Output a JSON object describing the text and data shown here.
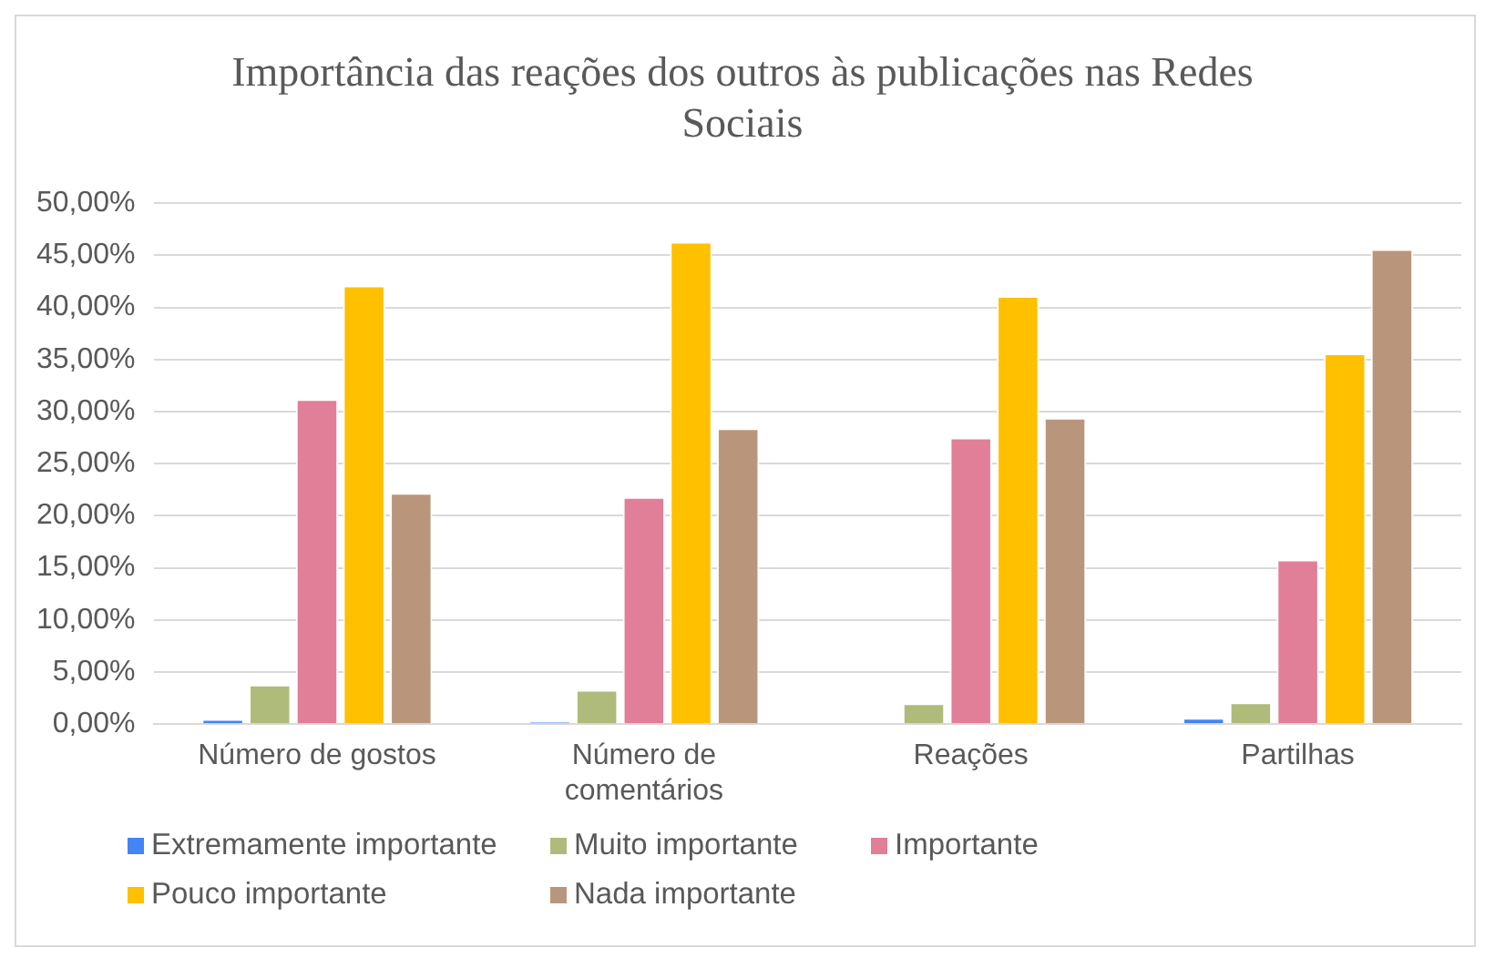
{
  "chart_data": {
    "type": "bar",
    "title": "Importância das reações dos outros às publicações nas Redes Sociais",
    "categories": [
      "Número de gostos",
      "Número de comentários",
      "Reações",
      "Partilhas"
    ],
    "series": [
      {
        "name": "Extremamente importante",
        "color": "#4285f4",
        "values": [
          0.5,
          0.2,
          0,
          0.6
        ]
      },
      {
        "name": "Muito importante",
        "color": "#afbb7a",
        "values": [
          3.8,
          3.3,
          2.0,
          2.1
        ]
      },
      {
        "name": "Importante",
        "color": "#e07f97",
        "values": [
          31.2,
          21.8,
          27.5,
          15.8
        ]
      },
      {
        "name": "Pouco importante",
        "color": "#ffc000",
        "values": [
          42.1,
          46.3,
          41.1,
          35.6
        ]
      },
      {
        "name": "Nada importante",
        "color": "#b9967b",
        "values": [
          22.2,
          28.4,
          29.4,
          45.6
        ]
      }
    ],
    "ylim": [
      0,
      50
    ],
    "yticks": [
      {
        "value": 0,
        "label": "0,00%"
      },
      {
        "value": 5,
        "label": "5,00%"
      },
      {
        "value": 10,
        "label": "10,00%"
      },
      {
        "value": 15,
        "label": "15,00%"
      },
      {
        "value": 20,
        "label": "20,00%"
      },
      {
        "value": 25,
        "label": "25,00%"
      },
      {
        "value": 30,
        "label": "30,00%"
      },
      {
        "value": 35,
        "label": "35,00%"
      },
      {
        "value": 40,
        "label": "40,00%"
      },
      {
        "value": 45,
        "label": "45,00%"
      },
      {
        "value": 50,
        "label": "50,00%"
      }
    ],
    "grid": "y",
    "legend": "bottom"
  }
}
